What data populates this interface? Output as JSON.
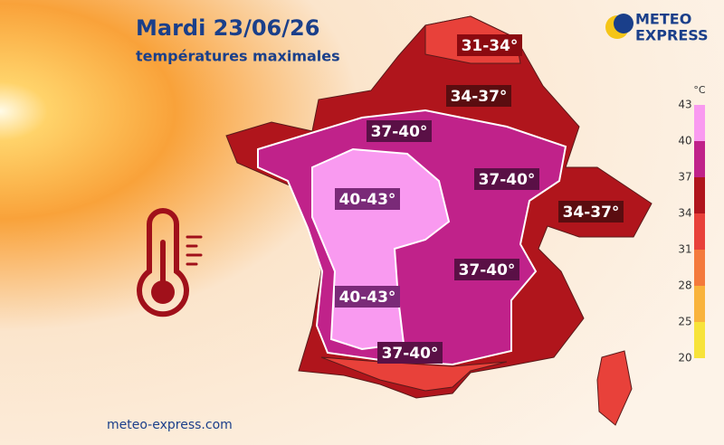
{
  "header": {
    "title": "Mardi 23/06/26",
    "subtitle": "températures maximales"
  },
  "logo": {
    "line1": "METEO",
    "line2": "EXPRESS"
  },
  "footer": {
    "url": "meteo-express.com"
  },
  "zones": [
    {
      "label": "31-34°"
    },
    {
      "label": "34-37°"
    },
    {
      "label": "37-40°"
    },
    {
      "label": "37-40°"
    },
    {
      "label": "34-37°"
    },
    {
      "label": "40-43°"
    },
    {
      "label": "37-40°"
    },
    {
      "label": "40-43°"
    },
    {
      "label": "37-40°"
    }
  ],
  "legend": {
    "unit": "°C",
    "ticks": [
      43,
      40,
      37,
      34,
      31,
      28,
      25,
      20
    ],
    "colors": [
      "#f99af0",
      "#c0228a",
      "#b0151c",
      "#e8413a",
      "#f47a3c",
      "#f9b33c",
      "#f7e33a"
    ]
  }
}
